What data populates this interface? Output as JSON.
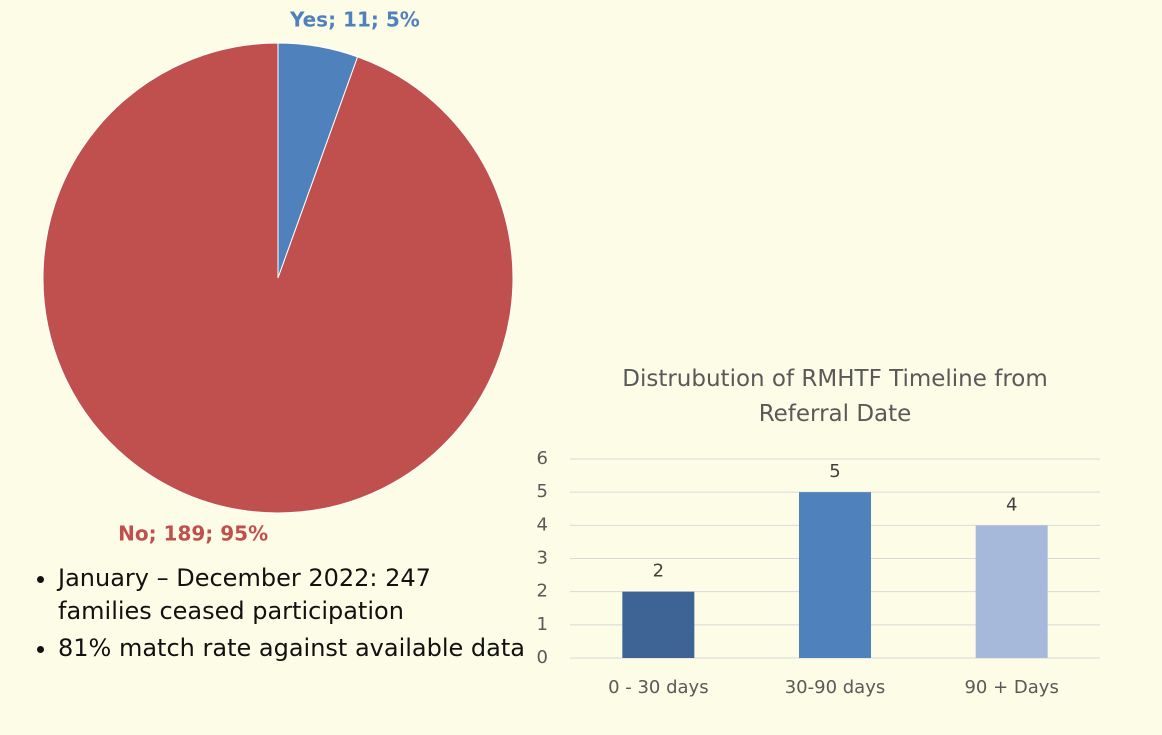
{
  "chart_data": [
    {
      "type": "pie",
      "categories": [
        "Yes",
        "No"
      ],
      "values": [
        11,
        189
      ],
      "value_labels": [
        "Yes; 11; 5%",
        "No; 189; 95%"
      ],
      "colors": [
        "#4f81bd",
        "#c0504d"
      ]
    },
    {
      "type": "bar",
      "title": "Distrubution of RMHTF Timeline from Referral Date",
      "categories": [
        "0 - 30 days",
        "30-90 days",
        "90 + Days"
      ],
      "values": [
        2,
        5,
        4
      ],
      "colors": [
        "#3e6496",
        "#4f81bd",
        "#a7b9db"
      ],
      "ylim": [
        0,
        6
      ],
      "yticks": [
        0,
        1,
        2,
        3,
        4,
        5,
        6
      ],
      "grid": true
    }
  ],
  "bullets": [
    "January – December 2022: 247 families ceased participation",
    "81% match rate against available data"
  ]
}
